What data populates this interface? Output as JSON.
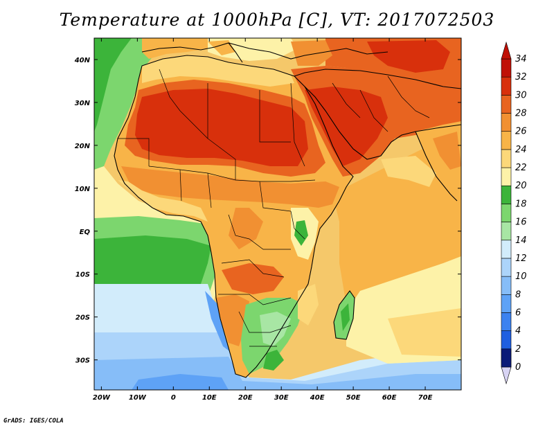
{
  "title": "Temperature at 1000hPa [C], VT: 2017072503",
  "credit": "GrADS: IGES/COLA",
  "map": {
    "lon_ticks": [
      "20W",
      "10W",
      "0",
      "10E",
      "20E",
      "30E",
      "40E",
      "50E",
      "60E",
      "70E"
    ],
    "lat_ticks": [
      "40N",
      "30N",
      "20N",
      "10N",
      "EQ",
      "10S",
      "20S",
      "30S"
    ],
    "lon_range": [
      -22,
      80
    ],
    "lat_range": [
      -37,
      45
    ]
  },
  "colorbar": {
    "labels": [
      "0",
      "2",
      "4",
      "6",
      "8",
      "10",
      "12",
      "14",
      "16",
      "18",
      "20",
      "22",
      "24",
      "26",
      "28",
      "30",
      "32",
      "34"
    ],
    "colors": [
      "#0a1a78",
      "#1040c8",
      "#1f5fe0",
      "#3c82f0",
      "#5ea2f6",
      "#86bdf8",
      "#acd4fa",
      "#d2ecfb",
      "#a8e6a4",
      "#7cd66e",
      "#3cb43a",
      "#fdf2a8",
      "#fcd87a",
      "#f8b448",
      "#f19032",
      "#e86420",
      "#d8300c",
      "#c01006"
    ]
  }
}
